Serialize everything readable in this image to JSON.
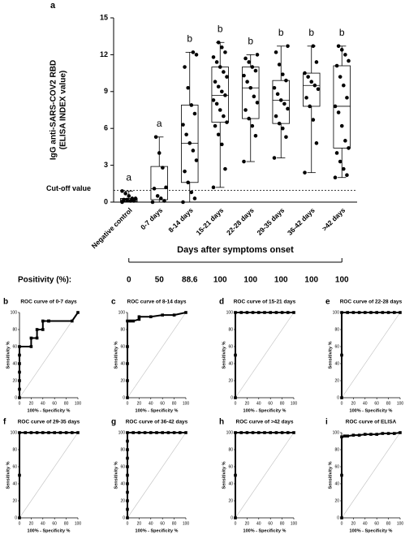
{
  "chart_data": [
    {
      "type": "box",
      "panel": "a",
      "y_label": [
        "IgG anti-SARS-COV2 RBD",
        "(ELISA INDEX value)"
      ],
      "x_label": "Days after symptoms onset",
      "categories": [
        "Negative control",
        "0-7 days",
        "8-14 days",
        "15-21 days",
        "22-28 days",
        "29-35 days",
        "36-42 days",
        ">42 days"
      ],
      "min": [
        0,
        0,
        0,
        1.2,
        3.3,
        3.6,
        2.4,
        2.0
      ],
      "q1": [
        0.05,
        0.2,
        1.6,
        6.5,
        6.8,
        6.4,
        7.8,
        4.4
      ],
      "median": [
        0.15,
        1.1,
        4.8,
        8.7,
        9.3,
        8.3,
        9.5,
        7.8
      ],
      "q3": [
        0.3,
        2.9,
        7.9,
        11.0,
        11.0,
        9.9,
        10.5,
        11.1
      ],
      "max": [
        0.9,
        5.3,
        12.2,
        13.0,
        12.0,
        12.7,
        12.7,
        12.7
      ],
      "points": [
        [
          0,
          0.1,
          0.1,
          0.2,
          0.2,
          0.3,
          0.3,
          0.5,
          0.7,
          0.9
        ],
        [
          0,
          0.1,
          0.3,
          0.5,
          1.1,
          1.2,
          2.8,
          4.0,
          5.3
        ],
        [
          0,
          0.3,
          0.8,
          1.6,
          2.5,
          3.4,
          4.2,
          4.8,
          5.5,
          6.3,
          7.2,
          7.9,
          9.3,
          11.0,
          12.0,
          12.2
        ],
        [
          1.2,
          2.7,
          4.7,
          5.5,
          6.2,
          6.5,
          7.0,
          7.5,
          8.0,
          8.3,
          8.7,
          9.0,
          9.4,
          9.8,
          10.2,
          10.6,
          11.0,
          11.4,
          11.8,
          12.2,
          12.6,
          13.0
        ],
        [
          3.3,
          5.4,
          6.2,
          6.8,
          7.5,
          8.1,
          8.6,
          9.3,
          9.8,
          10.3,
          10.7,
          11.0,
          11.4,
          11.7,
          12.0
        ],
        [
          3.6,
          5.3,
          6.0,
          6.4,
          7.0,
          7.6,
          8.0,
          8.3,
          8.8,
          9.3,
          9.9,
          10.4,
          11.2,
          12.2,
          12.7
        ],
        [
          2.4,
          4.8,
          6.7,
          7.8,
          8.5,
          9.2,
          9.5,
          9.8,
          10.2,
          10.5,
          11.4,
          12.7
        ],
        [
          2.0,
          2.2,
          2.7,
          3.3,
          4.0,
          4.4,
          5.0,
          6.2,
          7.3,
          7.8,
          8.5,
          9.5,
          10.2,
          11.1,
          11.5,
          12.0,
          12.4,
          12.7
        ]
      ],
      "letters": [
        "a",
        "a",
        "b",
        "b",
        "b",
        "b",
        "b",
        "b"
      ],
      "cutoff": 0.95,
      "cutoff_label": "Cut-off value",
      "positivity_label": "Positivity (%):",
      "positivity": [
        0,
        50,
        88.6,
        100,
        100,
        100,
        100,
        100
      ],
      "ylim": [
        0,
        15
      ],
      "yticks": [
        0,
        3,
        6,
        9,
        12,
        15
      ]
    },
    {
      "type": "line",
      "panel": "b",
      "title": "ROC curve of 0-7 days",
      "x_label": "100% - Specificity %",
      "y_label": "Sensitivity %",
      "xlim": [
        0,
        100
      ],
      "ylim": [
        0,
        100
      ],
      "xticks": [
        0,
        20,
        40,
        60,
        80,
        100
      ],
      "yticks": [
        0,
        20,
        40,
        60,
        80,
        100
      ],
      "x": [
        0,
        0,
        0,
        0,
        0,
        0,
        0,
        20,
        20,
        30,
        30,
        40,
        40,
        50,
        50,
        90,
        100
      ],
      "values": [
        0,
        10,
        20,
        30,
        40,
        50,
        60,
        60,
        70,
        70,
        80,
        80,
        90,
        90,
        90,
        90,
        100
      ]
    },
    {
      "type": "line",
      "panel": "c",
      "title": "ROC curve of 8-14 days",
      "x_label": "100% - Specificity %",
      "y_label": "Sensitivity %",
      "xlim": [
        0,
        100
      ],
      "ylim": [
        0,
        100
      ],
      "xticks": [
        0,
        20,
        40,
        60,
        80,
        100
      ],
      "yticks": [
        0,
        20,
        40,
        60,
        80,
        100
      ],
      "x": [
        0,
        0,
        0,
        0,
        0,
        5,
        10,
        20,
        20,
        40,
        60,
        80,
        100
      ],
      "values": [
        0,
        20,
        40,
        60,
        90,
        90,
        90,
        92,
        95,
        95,
        97,
        97,
        100
      ]
    },
    {
      "type": "line",
      "panel": "d",
      "title": "ROC curve of 15-21 days",
      "x_label": "100% - Specificity %",
      "y_label": "Sensitivity %",
      "xlim": [
        0,
        100
      ],
      "ylim": [
        0,
        100
      ],
      "xticks": [
        0,
        20,
        40,
        60,
        80,
        100
      ],
      "yticks": [
        0,
        20,
        40,
        60,
        80,
        100
      ],
      "x": [
        0,
        0,
        0,
        10,
        20,
        30,
        40,
        50,
        60,
        70,
        80,
        90,
        100
      ],
      "values": [
        0,
        50,
        100,
        100,
        100,
        100,
        100,
        100,
        100,
        100,
        100,
        100,
        100
      ]
    },
    {
      "type": "line",
      "panel": "e",
      "title": "ROC curve of 22-28 days",
      "x_label": "100% - Specificity %",
      "y_label": "Sensitivity %",
      "xlim": [
        0,
        100
      ],
      "ylim": [
        0,
        100
      ],
      "xticks": [
        0,
        20,
        40,
        60,
        80,
        100
      ],
      "yticks": [
        0,
        20,
        40,
        60,
        80,
        100
      ],
      "x": [
        0,
        0,
        0,
        10,
        20,
        30,
        40,
        50,
        60,
        70,
        80,
        90,
        100
      ],
      "values": [
        0,
        50,
        100,
        100,
        100,
        100,
        100,
        100,
        100,
        100,
        100,
        100,
        100
      ]
    },
    {
      "type": "line",
      "panel": "f",
      "title": "ROC curve of 29-35 days",
      "x_label": "100% - Specificity %",
      "y_label": "Sensitivity %",
      "xlim": [
        0,
        100
      ],
      "ylim": [
        0,
        100
      ],
      "xticks": [
        0,
        20,
        40,
        60,
        80,
        100
      ],
      "yticks": [
        0,
        20,
        40,
        60,
        80,
        100
      ],
      "x": [
        0,
        0,
        0,
        10,
        20,
        30,
        40,
        50,
        60,
        70,
        80,
        90,
        100
      ],
      "values": [
        0,
        50,
        100,
        100,
        100,
        100,
        100,
        100,
        100,
        100,
        100,
        100,
        100
      ]
    },
    {
      "type": "line",
      "panel": "g",
      "title": "ROC curve of 36-42 days",
      "x_label": "100% - Specificity %",
      "y_label": "Sensitivity %",
      "xlim": [
        0,
        100
      ],
      "ylim": [
        0,
        100
      ],
      "xticks": [
        0,
        20,
        40,
        60,
        80,
        100
      ],
      "yticks": [
        0,
        20,
        40,
        60,
        80,
        100
      ],
      "x": [
        0,
        0,
        0,
        0,
        0,
        0,
        0,
        0,
        0,
        0,
        0,
        10,
        20,
        30,
        40,
        50,
        60,
        70,
        80,
        90,
        100
      ],
      "values": [
        0,
        10,
        20,
        30,
        40,
        50,
        60,
        70,
        80,
        90,
        100,
        100,
        100,
        100,
        100,
        100,
        100,
        100,
        100,
        100,
        100
      ]
    },
    {
      "type": "line",
      "panel": "h",
      "title": "ROC curve of >42 days",
      "x_label": "100% - Specificity %",
      "y_label": "Sensitivity %",
      "xlim": [
        0,
        100
      ],
      "ylim": [
        0,
        100
      ],
      "xticks": [
        0,
        20,
        40,
        60,
        80,
        100
      ],
      "yticks": [
        0,
        20,
        40,
        60,
        80,
        100
      ],
      "x": [
        0,
        0,
        0,
        10,
        20,
        30,
        40,
        50,
        60,
        70,
        80,
        90,
        100
      ],
      "values": [
        0,
        50,
        100,
        100,
        100,
        100,
        100,
        100,
        100,
        100,
        100,
        100,
        100
      ]
    },
    {
      "type": "line",
      "panel": "i",
      "title": "ROC curve of ELISA",
      "x_label": "100% - Specificity %",
      "y_label": "Sensitivity %",
      "xlim": [
        0,
        100
      ],
      "ylim": [
        0,
        100
      ],
      "xticks": [
        0,
        20,
        40,
        60,
        80,
        100
      ],
      "yticks": [
        0,
        20,
        40,
        60,
        80,
        100
      ],
      "x": [
        0,
        0,
        0,
        5,
        10,
        20,
        30,
        40,
        50,
        60,
        70,
        80,
        90,
        100
      ],
      "values": [
        0,
        50,
        95,
        96,
        96,
        97,
        97,
        98,
        98,
        98,
        99,
        99,
        99,
        100
      ]
    }
  ]
}
